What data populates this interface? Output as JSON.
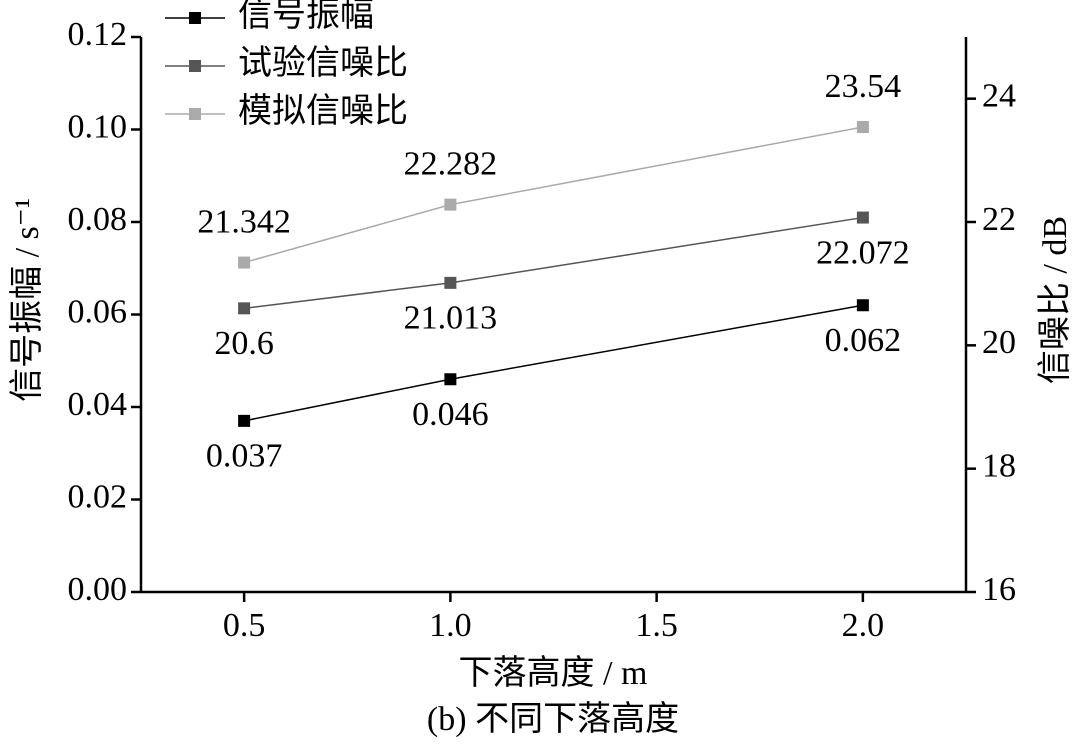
{
  "chart_data": {
    "type": "line",
    "xlabel": "下落高度 / m",
    "ylabel": "信号振幅 / s⁻¹",
    "y2label": "信噪比 / dB",
    "caption": "(b) 不同下落高度",
    "x": [
      0.5,
      1.0,
      2.0
    ],
    "xlim": [
      0.25,
      2.25
    ],
    "xticks": [
      0.5,
      {
        "value": 1.0,
        "label": "1.0"
      },
      1.5,
      {
        "value": 2.0,
        "label": "2.0"
      }
    ],
    "ylim": [
      0,
      0.12
    ],
    "yticks": [
      {
        "value": 0,
        "label": "0.00"
      },
      0.02,
      0.04,
      0.06,
      0.08,
      {
        "value": 0.1,
        "label": "0.10"
      },
      0.12
    ],
    "y2lim": [
      16,
      25
    ],
    "y2ticks": [
      16,
      18,
      20,
      22,
      24
    ],
    "legend": "top-left",
    "series": [
      {
        "name": "信号振幅",
        "color": "#000000",
        "values": [
          0.037,
          0.046,
          0.062
        ]
      },
      {
        "name": "试验信噪比",
        "color": "#555555",
        "axis": "y2",
        "values": [
          20.6,
          21.013,
          22.072
        ]
      },
      {
        "name": "模拟信噪比",
        "color": "#aaaaaa",
        "axis": "y2",
        "values": [
          21.342,
          22.282,
          23.54
        ]
      }
    ]
  }
}
